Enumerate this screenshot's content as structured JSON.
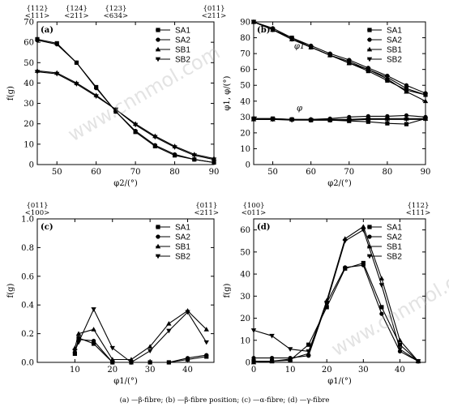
{
  "caption": "(a) —β-fibre; (b) —β-fibre position; (c) —α-fibre; (d) —γ-fibre",
  "watermark": "www.cnnmol.com",
  "chart_data": [
    {
      "type": "line",
      "panel": "(a)",
      "xlabel": "φ2/(°)",
      "ylabel": "f(g)",
      "xlim": [
        45,
        90
      ],
      "ylim": [
        0,
        70
      ],
      "xticks": [
        50,
        60,
        70,
        80,
        90
      ],
      "yticks": [
        0,
        10,
        20,
        30,
        40,
        50,
        60,
        70
      ],
      "orientations": [
        {
          "x": 45,
          "top": "{112}",
          "bottom": "<111>"
        },
        {
          "x": 55,
          "top": "{124}",
          "bottom": "<211>"
        },
        {
          "x": 65,
          "top": "{123}",
          "bottom": "<634>"
        },
        {
          "x": 90,
          "top": "{011}",
          "bottom": "<211>"
        }
      ],
      "legend": [
        "SA1",
        "SA2",
        "SB1",
        "SB2"
      ],
      "legend_position": "top-right",
      "x": [
        45,
        50,
        55,
        60,
        65,
        70,
        75,
        80,
        85,
        90
      ],
      "series": [
        {
          "name": "SA1",
          "values": [
            61.5,
            59.5,
            50,
            38,
            26,
            16,
            9,
            4.5,
            2.5,
            1
          ],
          "marker": "square"
        },
        {
          "name": "SA2",
          "values": [
            61,
            59,
            50,
            37.5,
            26,
            16.5,
            9.5,
            5,
            2.5,
            1
          ],
          "marker": "circle"
        },
        {
          "name": "SB1",
          "values": [
            46,
            45,
            40,
            34,
            27,
            20,
            14,
            9,
            5,
            3
          ],
          "marker": "triangle"
        },
        {
          "name": "SB2",
          "values": [
            45.5,
            44.5,
            39.5,
            33.5,
            27,
            19.5,
            13.5,
            8.5,
            4.5,
            2.5
          ],
          "marker": "triangle-down"
        }
      ]
    },
    {
      "type": "line",
      "panel": "(b)",
      "xlabel": "φ2/(°)",
      "ylabel": "φ1, φ/(°)",
      "xlim": [
        45,
        90
      ],
      "ylim": [
        0,
        90
      ],
      "xticks": [
        50,
        60,
        70,
        80,
        90
      ],
      "yticks": [
        0,
        10,
        20,
        30,
        40,
        50,
        60,
        70,
        80,
        90
      ],
      "annotations": [
        "φ1",
        "φ"
      ],
      "legend": [
        "SA1",
        "SA2",
        "SB1",
        "SB2"
      ],
      "legend_position": "top-right",
      "x": [
        45,
        50,
        55,
        60,
        65,
        70,
        75,
        80,
        85,
        90
      ],
      "series": [
        {
          "name": "SA1",
          "curve": "φ1",
          "values": [
            90,
            85,
            80,
            74,
            69,
            64,
            59,
            53,
            47,
            44
          ],
          "marker": "square"
        },
        {
          "name": "SA2",
          "curve": "φ1",
          "values": [
            90,
            86,
            80,
            75,
            70,
            66,
            61,
            56,
            50,
            45
          ],
          "marker": "circle"
        },
        {
          "name": "SB1",
          "curve": "φ1",
          "values": [
            90,
            85,
            79,
            74,
            69,
            64,
            60,
            54,
            46,
            40
          ],
          "marker": "triangle"
        },
        {
          "name": "SB2",
          "curve": "φ1",
          "values": [
            90,
            85,
            79,
            74,
            69,
            65,
            60,
            55,
            48,
            44
          ],
          "marker": "triangle-down"
        },
        {
          "name": "SA1",
          "curve": "φ",
          "values": [
            29,
            29,
            28.5,
            28,
            28,
            27.5,
            27,
            26,
            25.5,
            29
          ],
          "marker": "square"
        },
        {
          "name": "SA2",
          "curve": "φ",
          "values": [
            29,
            29,
            28.5,
            28.5,
            29,
            30,
            30.5,
            30.5,
            31,
            30
          ],
          "marker": "circle"
        },
        {
          "name": "SB1",
          "curve": "φ",
          "values": [
            28.5,
            28.5,
            28.5,
            28.5,
            28.5,
            28.5,
            29,
            29,
            29,
            29
          ],
          "marker": "triangle"
        },
        {
          "name": "SB2",
          "curve": "φ",
          "values": [
            28.5,
            28.5,
            28,
            28,
            28,
            28,
            28.5,
            28.5,
            28.5,
            28.5
          ],
          "marker": "triangle-down"
        }
      ]
    },
    {
      "type": "line",
      "panel": "(c)",
      "xlabel": "φ1/(°)",
      "ylabel": "f(g)",
      "xlim": [
        0,
        47
      ],
      "ylim": [
        0,
        1.0
      ],
      "xticks": [
        10,
        20,
        30,
        40
      ],
      "yticks": [
        0,
        0.2,
        0.4,
        0.6,
        0.8,
        1.0
      ],
      "orientations": [
        {
          "x": 0,
          "top": "{011}",
          "bottom": "<100>"
        },
        {
          "x": 45,
          "top": "{011}",
          "bottom": "<211>"
        }
      ],
      "legend": [
        "SA1",
        "SA2",
        "SB1",
        "SB2"
      ],
      "legend_position": "top-right",
      "x": [
        10,
        11,
        15,
        20,
        25,
        30,
        35,
        40,
        45
      ],
      "series": [
        {
          "name": "SA1",
          "values": [
            0.06,
            0.17,
            0.13,
            0.0,
            0.0,
            0.0,
            0.0,
            0.02,
            0.04
          ],
          "marker": "square"
        },
        {
          "name": "SA2",
          "values": [
            0.07,
            0.16,
            0.15,
            0.0,
            0.0,
            0.0,
            0.0,
            0.03,
            0.05
          ],
          "marker": "circle"
        },
        {
          "name": "SB1",
          "values": [
            0.1,
            0.2,
            0.23,
            0.02,
            0.02,
            0.11,
            0.27,
            0.36,
            0.23
          ],
          "marker": "triangle"
        },
        {
          "name": "SB2",
          "values": [
            0.08,
            0.14,
            0.37,
            0.1,
            0.0,
            0.08,
            0.22,
            0.35,
            0.14
          ],
          "marker": "triangle-down"
        }
      ]
    },
    {
      "type": "line",
      "panel": "(d)",
      "xlabel": "φ1/(°)",
      "ylabel": "f(g)",
      "xlim": [
        0,
        47
      ],
      "ylim": [
        0,
        65
      ],
      "xticks": [
        0,
        10,
        20,
        30,
        40
      ],
      "yticks": [
        0,
        10,
        20,
        30,
        40,
        50,
        60
      ],
      "orientations": [
        {
          "x": 0,
          "top": "{100}",
          "bottom": "<011>"
        },
        {
          "x": 45,
          "top": "{112}",
          "bottom": "<111>"
        }
      ],
      "legend": [
        "SA1",
        "SA2",
        "SB1",
        "SB2"
      ],
      "legend_position": "top-right",
      "x": [
        0,
        5,
        10,
        15,
        20,
        25,
        30,
        35,
        40,
        45
      ],
      "series": [
        {
          "name": "SA1",
          "values": [
            0.5,
            0.5,
            1,
            8,
            25,
            42.5,
            45,
            25,
            8,
            0.5
          ],
          "marker": "square"
        },
        {
          "name": "SA2",
          "values": [
            2,
            2,
            2,
            3,
            27,
            43,
            44,
            22,
            5,
            0.5
          ],
          "marker": "circle"
        },
        {
          "name": "SB1",
          "values": [
            0,
            0.5,
            1.5,
            4,
            28,
            56,
            61.5,
            38,
            10,
            0.5
          ],
          "marker": "triangle"
        },
        {
          "name": "SB2",
          "values": [
            14.5,
            12,
            6,
            5,
            27,
            55,
            60,
            35,
            6,
            0.5
          ],
          "marker": "triangle-down"
        }
      ]
    }
  ]
}
